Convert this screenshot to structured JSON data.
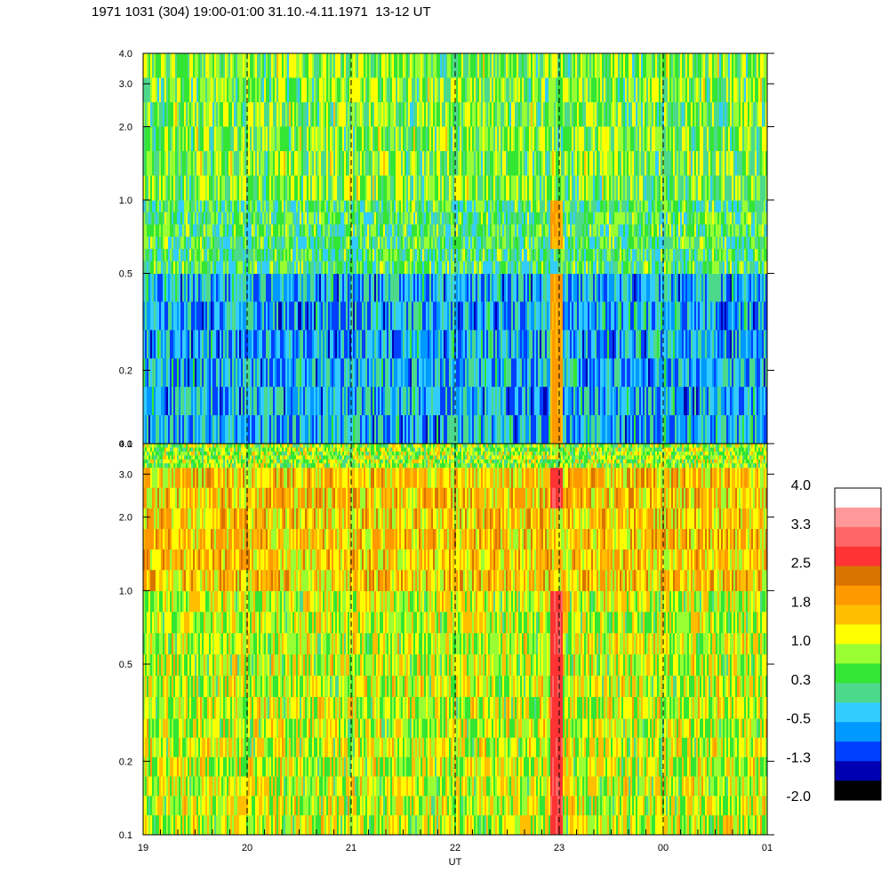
{
  "title": "1971 1031 (304) 19:00-01:00 31.10.-4.11.1971  13-12 UT",
  "chart_data": [
    {
      "type": "heatmap",
      "panel": "upper",
      "x_tick_labels": [
        "19",
        "20",
        "21",
        "22",
        "23",
        "00",
        "01"
      ],
      "x_hours": [
        0,
        1,
        2,
        3,
        4,
        5,
        6
      ],
      "y_tick_labels": [
        "0.1",
        "0.2",
        "0.5",
        "1.0",
        "2.0",
        "3.0",
        "4.0"
      ],
      "y_values": [
        0.1,
        0.2,
        0.5,
        1.0,
        2.0,
        3.0,
        4.0
      ],
      "y_scale": "log",
      "ylim": [
        0.1,
        4.0
      ],
      "dashed_hours": [
        1,
        2,
        3,
        4,
        5
      ],
      "dominant_levels": [
        {
          "freq_range": [
            0.1,
            0.5
          ],
          "level": -0.5
        },
        {
          "freq_range": [
            0.5,
            1.0
          ],
          "level": 0.3
        },
        {
          "freq_range": [
            1.0,
            4.0
          ],
          "level": 0.6
        }
      ],
      "events": [
        {
          "x_hour": 3.97,
          "freq_range": [
            0.1,
            0.8
          ],
          "level": 1.8
        }
      ]
    },
    {
      "type": "heatmap",
      "panel": "lower",
      "x_tick_labels": [
        "19",
        "20",
        "21",
        "22",
        "23",
        "00",
        "01"
      ],
      "x_hours": [
        0,
        1,
        2,
        3,
        4,
        5,
        6
      ],
      "y_tick_labels": [
        "0.1",
        "0.2",
        "0.5",
        "1.0",
        "2.0",
        "3.0",
        "4.0"
      ],
      "y_values": [
        0.1,
        0.2,
        0.5,
        1.0,
        2.0,
        3.0,
        4.0
      ],
      "y_scale": "log",
      "ylim": [
        0.1,
        4.0
      ],
      "xlabel": "UT",
      "dashed_hours": [
        1,
        2,
        3,
        4,
        5
      ],
      "dominant_levels": [
        {
          "freq_range": [
            0.1,
            0.3
          ],
          "level": 1.0
        },
        {
          "freq_range": [
            0.3,
            1.0
          ],
          "level": 1.0
        },
        {
          "freq_range": [
            1.0,
            3.2
          ],
          "level": 1.5
        },
        {
          "freq_range": [
            3.2,
            4.0
          ],
          "level": 0.8
        }
      ],
      "events": [
        {
          "x_hour": 3.97,
          "freq_range": [
            0.1,
            1.5
          ],
          "level": 2.8
        }
      ]
    }
  ],
  "colorbar": {
    "labels": [
      "4.0",
      "3.3",
      "2.5",
      "1.8",
      "1.0",
      "0.3",
      "-0.5",
      "-1.3",
      "-2.0"
    ],
    "colors": [
      "#ffffff",
      "#ff9999",
      "#ff6666",
      "#ff3333",
      "#d97300",
      "#ff9900",
      "#ffbf00",
      "#ffff00",
      "#99ff33",
      "#33e633",
      "#4dd98c",
      "#33ccff",
      "#0099ff",
      "#0040ff",
      "#0000b3",
      "#000000"
    ]
  }
}
